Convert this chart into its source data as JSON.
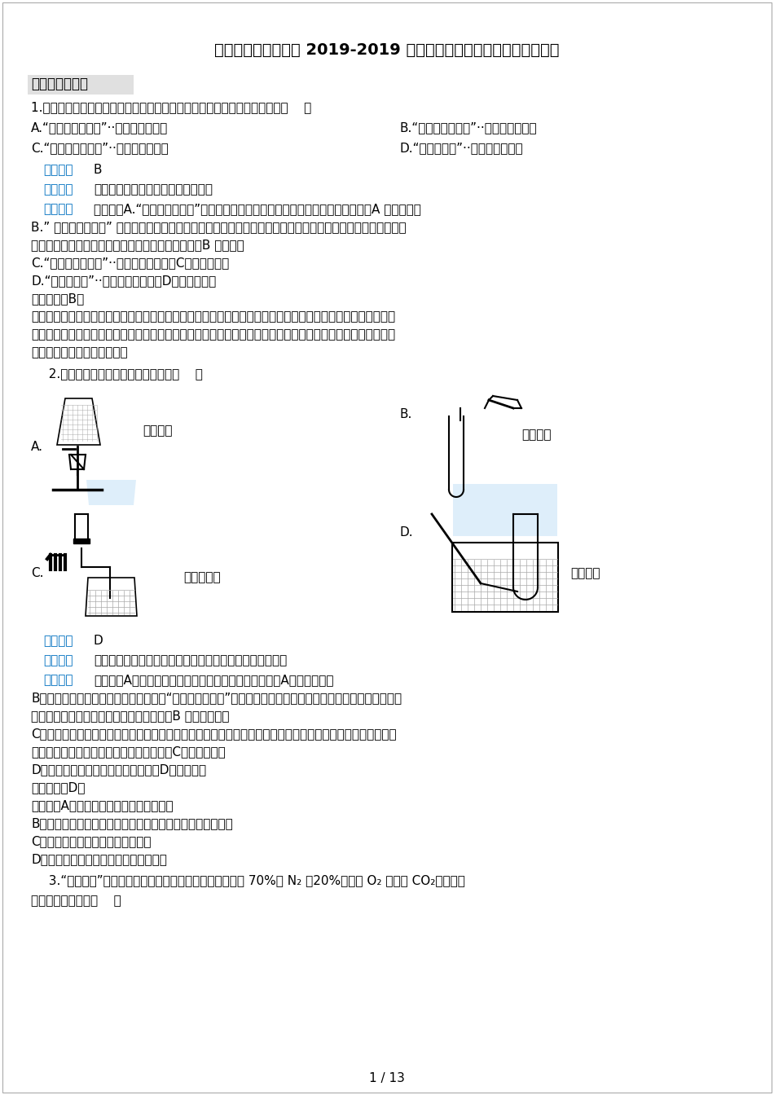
{
  "title": "河北省邢台市临城县 2019-2019 学年九年级上学期化学期中考试试卷",
  "bg_color": "#ffffff",
  "text_color": "#000000",
  "blue_color": "#0070c0",
  "page_footer": "1 / 13",
  "section1": "一、单项选择题",
  "q1": "1.以下诗句描述的自然现象跟所涉及到的物质变化的对应关系错误的选项是『    』",
  "q1_optA": "A.“春风又绳江南岸”··包含了化学变化",
  "q1_optB": "B.“日照香炉生紫烟”··包含了化学变化",
  "q1_optC": "C.“北风卷地白草折”··包含了物理变化",
  "q1_optD": "D.“雪尽马蹄轻”··包含了物理变化",
  "q1_ans_prefix": "【答案】",
  "q1_ans": "B",
  "q1_kp_prefix": "【考点】",
  "q1_kp": "物理变化、化学变化的特点及其判别",
  "q1_jx_prefix": "【解析】",
  "q1_analysis": [
    "【解答】A.“春风又绳江南岸”，有植物的生长过程，包含了光合作用等化学变化；A 不符合题意",
    "B.” 日照香炉生紫烟” 的意思是：由于瀑布飞泧，水汽蒸腾而上，在丽日照耀下，俷佛有座顶天立地的香炉冈冈",
    "升起了团团紫烟。没有新的物质生成，是物理变化；B 符合题意",
    "C.“北风卷地白草折”··包含了物理变化，C不符合题意；",
    "D.“雪尽马蹄轻”··包含了物理变化，D不符合题意。",
    "故答案为：B。",
    "【分析】物理变化和化学变化的根本区别在于是否有新物质生成，如果有新物质生成，那么属于化学变化；反之",
    "，那么是物理变化。物理变化和化学变化的联系是：化学变化中一定同时伴随着物理变化，而物理变化中不一定",
    "伴随化学变化。据此分析解答"
  ],
  "q2": "  2.以下实验装置或操作正确的选项是『    』",
  "q2_labelA": "A.",
  "q2_captA": "加热液体",
  "q2_labelB": "B.",
  "q2_captB": "参加固体",
  "q2_labelC": "C.",
  "q2_captC": "检查气密性",
  "q2_labelD": "D.",
  "q2_captD": "收集氧气",
  "q2_ans_prefix": "【答案】",
  "q2_ans": "D",
  "q2_kp_prefix": "【考点】",
  "q2_kp": "实验室常见的付器及使用，药品的取用，检查装置的气密性",
  "q2_jx_prefix": "【解析】",
  "q2_analysis": [
    "【解答】A、烧杯不能直接加热，底部要垫一张石棉网，A不符合题意；",
    "B、取用大颗粒的固体药品的操作要领是“一平二放三慢刎”，即要先将试管横放，然后把药品放在试管口，再慢",
    "慢的竖起试管，使药品滑落到试管的底部，B 不符合题意；",
    "C、该装置检查气密性的方法是：用止水夹夹住橡皮管，然后往长颈漏斗中加水，看长颈漏斗内能否形成一段水",
    "柱，假设能，那么说明装置的气密性良好，C不符合题意；",
    "D、氧气难溶于水，可用排水法收集，D符合题意。",
    "故答案为：D。",
    "【分析】A根据烧杯不能直接加热分析解答",
    "B取用大颗粒固体时，要将固体放在试管口，慢慢的立起试管",
    "C根据装置起名检查的原理分析解答",
    "D氧气不易溢于水因此可以用排水法收集"
  ],
  "q3_line1": "  3.“人造空气”帮助人们实现了太空漫步的梦想．其中含有 70%的 N₂ ，20%以上的 O₂ ，还有 CO₂等，以下",
  "q3_line2": "说法正确的选项是『    』"
}
